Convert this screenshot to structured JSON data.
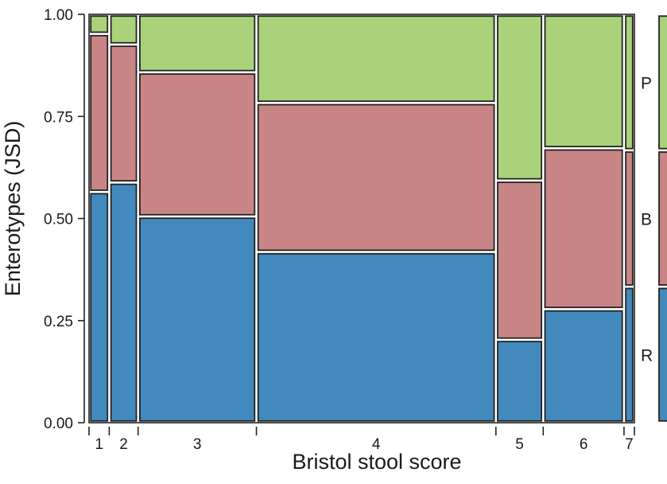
{
  "chart_data": {
    "type": "mosaic",
    "xlabel": "Bristol stool score",
    "ylabel": "Enterotypes (JSD)",
    "ylim": [
      0,
      1
    ],
    "y_ticks": [
      "0.00",
      "0.25",
      "0.50",
      "0.75",
      "1.00"
    ],
    "categories": [
      "1",
      "2",
      "3",
      "4",
      "5",
      "6",
      "7"
    ],
    "column_widths": [
      0.035,
      0.05,
      0.205,
      0.415,
      0.082,
      0.14,
      0.018
    ],
    "series": [
      {
        "name": "R",
        "color": "#4289bd",
        "values": [
          0.565,
          0.588,
          0.505,
          0.418,
          0.203,
          0.278,
          0.333
        ]
      },
      {
        "name": "B",
        "color": "#c98585",
        "values": [
          0.387,
          0.338,
          0.353,
          0.365,
          0.39,
          0.394,
          0.334
        ]
      },
      {
        "name": "P",
        "color": "#a9d27a",
        "values": [
          0.048,
          0.074,
          0.142,
          0.217,
          0.407,
          0.328,
          0.333
        ]
      }
    ],
    "legend": {
      "position": "right",
      "entries": [
        "P",
        "B",
        "R"
      ]
    },
    "grid": false
  }
}
